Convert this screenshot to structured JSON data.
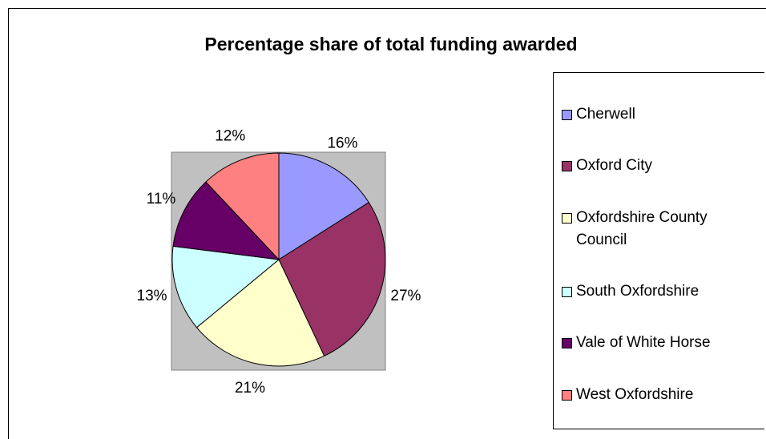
{
  "chart_data": {
    "type": "pie",
    "title": "Percentage share of total funding awarded",
    "categories": [
      "Cherwell",
      "Oxford City",
      "Oxfordshire County Council",
      "South Oxfordshire",
      "Vale of White Horse",
      "West Oxfordshire"
    ],
    "values": [
      16,
      27,
      21,
      13,
      11,
      12
    ],
    "value_labels": [
      "16%",
      "27%",
      "21%",
      "13%",
      "11%",
      "12%"
    ],
    "colors": [
      "#9999ff",
      "#993366",
      "#ffffcc",
      "#ccffff",
      "#660066",
      "#ff8080"
    ],
    "legend": "right"
  }
}
